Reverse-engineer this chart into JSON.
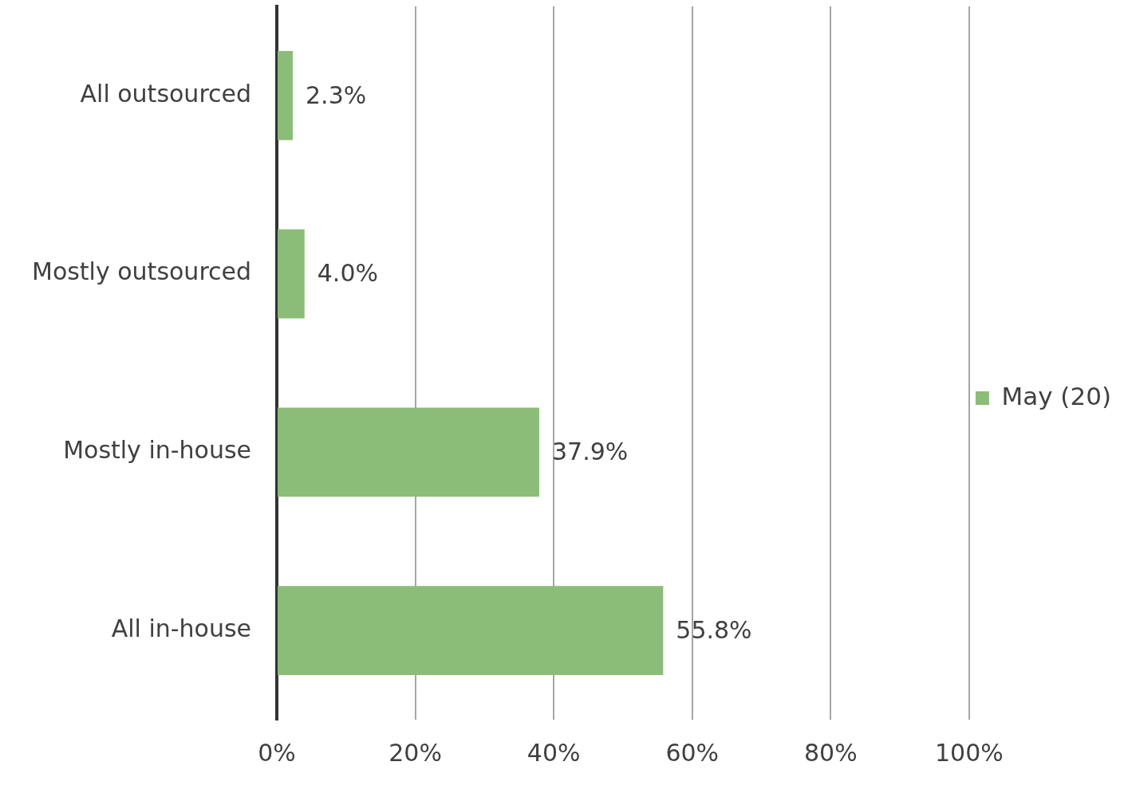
{
  "chart_data": {
    "type": "bar",
    "orientation": "horizontal",
    "categories": [
      "All outsourced",
      "Mostly outsourced",
      "Mostly in-house",
      "All in-house"
    ],
    "series": [
      {
        "name": "May (20)",
        "color": "#8bbd78",
        "values": [
          2.3,
          4.0,
          37.9,
          55.8
        ],
        "value_labels": [
          "2.3%",
          "4.0%",
          "37.9%",
          "55.8%"
        ]
      }
    ],
    "xlim": [
      0,
      100
    ],
    "xticks": [
      {
        "value": 0,
        "label": "0%"
      },
      {
        "value": 20,
        "label": "20%"
      },
      {
        "value": 40,
        "label": "40%"
      },
      {
        "value": 60,
        "label": "60%"
      },
      {
        "value": 80,
        "label": "80%"
      },
      {
        "value": 100,
        "label": "100%"
      }
    ],
    "grid": "x",
    "legend": "right"
  }
}
